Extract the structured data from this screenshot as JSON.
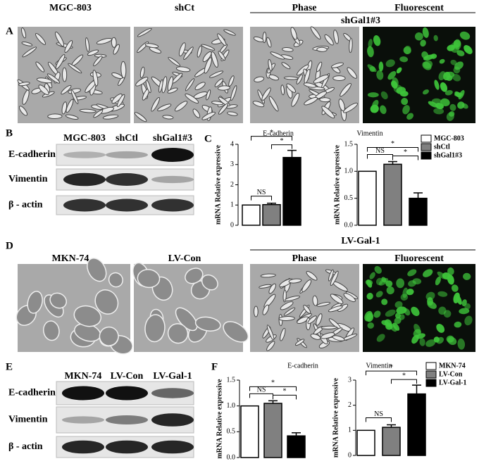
{
  "panel_labels": [
    "A",
    "B",
    "C",
    "D",
    "E",
    "F"
  ],
  "micrographs": [
    {
      "headers": [
        "MGC-803",
        "shCt"
      ],
      "group": "shGal1#3",
      "group_headers": [
        "Phase",
        "Fluorescent"
      ]
    },
    {
      "headers": [
        "MKN-74",
        "LV-Con"
      ],
      "group": "LV-Gal-1",
      "group_headers": [
        "Phase",
        "Fluorescent"
      ]
    }
  ],
  "blots": [
    {
      "lanes": [
        "MGC-803",
        "shCtl",
        "shGal1#3"
      ],
      "rows": [
        "E-cadherin",
        "Vimentin",
        "β - actin"
      ]
    },
    {
      "lanes": [
        "MKN-74",
        "LV-Con",
        "LV-Gal-1"
      ],
      "rows": [
        "E-cadherin",
        "Vimentin",
        "β - actin"
      ]
    }
  ],
  "chart_data": [
    {
      "type": "bar",
      "title": "E-cadherin",
      "ylabel": "mRNA Relative expressive",
      "values": [
        1,
        1.02,
        3.35
      ],
      "errors": [
        0,
        0.07,
        0.35
      ],
      "colors": [
        "#ffffff",
        "#808080",
        "#000000"
      ],
      "ylim": [
        0,
        4
      ],
      "yticks": [
        0,
        1,
        2,
        3,
        4
      ],
      "annotations": [
        "NS",
        "*",
        "*"
      ]
    },
    {
      "type": "bar",
      "title": "Vimentin",
      "ylabel": "mRNA Relative expressive",
      "series": [
        {
          "name": "MGC-803",
          "color": "#ffffff",
          "values": [
            1
          ]
        },
        {
          "name": "shCtl",
          "color": "#808080",
          "values": [
            1.13
          ]
        },
        {
          "name": "shGal1#3",
          "color": "#000000",
          "values": [
            0.5
          ]
        }
      ],
      "errors": [
        0,
        0.05,
        0.1
      ],
      "ylim": [
        0,
        1.5
      ],
      "yticks": [
        {
          "value": 0,
          "label": "0.0"
        },
        0.5,
        {
          "value": 1,
          "label": "1.0"
        },
        1.5
      ],
      "annotations": [
        "NS",
        "*",
        "*"
      ]
    },
    {
      "type": "bar",
      "title": "E-cadherin",
      "ylabel": "mRNA Relative expressive",
      "values": [
        1,
        1.05,
        0.42
      ],
      "errors": [
        0,
        0.05,
        0.06
      ],
      "colors": [
        "#ffffff",
        "#808080",
        "#000000"
      ],
      "ylim": [
        0,
        1.5
      ],
      "yticks": [
        {
          "value": 0,
          "label": "0.0"
        },
        0.5,
        {
          "value": 1,
          "label": "1.0"
        },
        1.5
      ],
      "annotations": [
        "NS",
        "*",
        "*"
      ]
    },
    {
      "type": "bar",
      "title": "Vimentin",
      "ylabel": "mRNA Relative expressive",
      "series": [
        {
          "name": "MKN-74",
          "color": "#ffffff",
          "values": [
            1
          ]
        },
        {
          "name": "LV-Con",
          "color": "#808080",
          "values": [
            1.12
          ]
        },
        {
          "name": "LV-Gal-1",
          "color": "#000000",
          "values": [
            2.45
          ]
        }
      ],
      "errors": [
        0,
        0.1,
        0.35
      ],
      "ylim": [
        0,
        3
      ],
      "yticks": [
        0,
        1,
        2,
        3
      ],
      "annotations": [
        "NS",
        "*",
        "*"
      ]
    }
  ]
}
